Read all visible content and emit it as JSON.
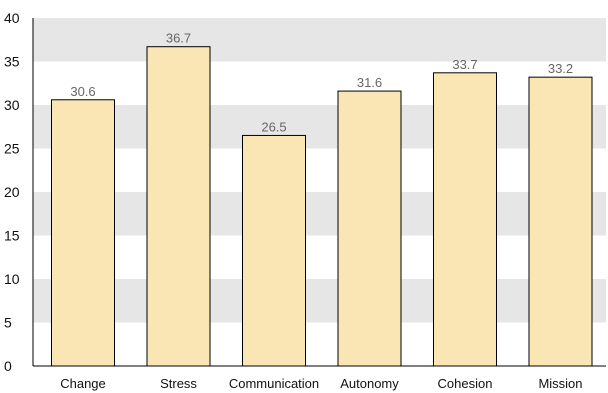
{
  "chart_data": {
    "type": "bar",
    "categories": [
      "Change",
      "Stress",
      "Communication",
      "Autonomy",
      "Cohesion",
      "Mission"
    ],
    "values": [
      30.6,
      36.7,
      26.5,
      31.6,
      33.7,
      33.2
    ],
    "value_labels": [
      "30.6",
      "36.7",
      "26.5",
      "31.6",
      "33.7",
      "33.2"
    ],
    "yticks": [
      "0",
      "5",
      "10",
      "15",
      "20",
      "25",
      "30",
      "35",
      "40"
    ],
    "ylim": [
      0,
      40
    ],
    "title": "",
    "xlabel": "",
    "ylabel": "",
    "grid": "alternating horizontal bands",
    "legend": "none",
    "colors": {
      "bar_fill": "#FAE6B4",
      "bar_stroke": "#000000",
      "band": "#E6E6E6",
      "axis": "#000000",
      "value_text": "#666666"
    }
  }
}
